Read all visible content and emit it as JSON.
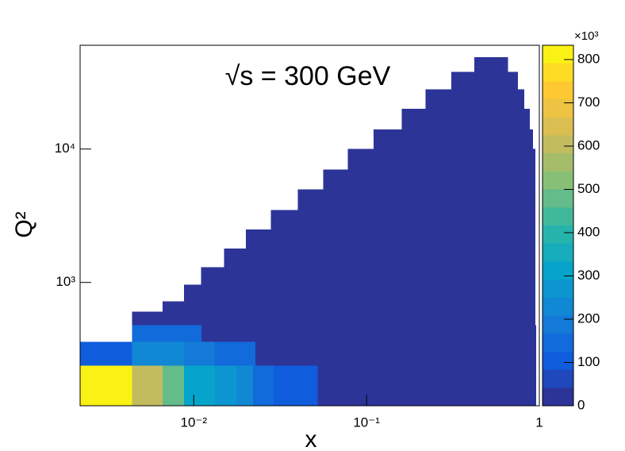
{
  "chart_data": {
    "type": "heatmap",
    "title": "√s = 300 GeV",
    "x_label": "x",
    "y_label": "Q²",
    "z_multiplier": "×10³",
    "xlog": true,
    "ylog": true,
    "xlim": [
      0.0022,
      1
    ],
    "ylim": [
      119,
      60000
    ],
    "zlim": [
      0,
      833000
    ],
    "xticks": [
      {
        "value": 0.01,
        "label": "10⁻²"
      },
      {
        "value": 0.1,
        "label": "10⁻¹"
      },
      1
    ],
    "yticks": [
      {
        "value": 1000,
        "label": "10³"
      },
      {
        "value": 10000,
        "label": "10⁴"
      }
    ],
    "zticks": [
      {
        "value": 0,
        "label": "0"
      },
      {
        "value": 100000,
        "label": "100"
      },
      {
        "value": 200000,
        "label": "200"
      },
      {
        "value": 300000,
        "label": "300"
      },
      {
        "value": 400000,
        "label": "400"
      },
      {
        "value": 500000,
        "label": "500"
      },
      {
        "value": 600000,
        "label": "600"
      },
      {
        "value": 700000,
        "label": "700"
      },
      {
        "value": 800000,
        "label": "800"
      }
    ],
    "contours": 20,
    "palette": [
      "#352a87",
      "#0f5cdd",
      "#1481d6",
      "#06a4ca",
      "#2eb7a4",
      "#87bf77",
      "#d1bb59",
      "#fec832",
      "#f9fb0e"
    ],
    "cells": [
      {
        "x": [
          0.0022,
          0.0044
        ],
        "y": [
          119,
          237
        ],
        "value": 820000
      },
      {
        "x": [
          0.0044,
          0.0066
        ],
        "y": [
          119,
          237
        ],
        "value": 620000
      },
      {
        "x": [
          0.0066,
          0.0088
        ],
        "y": [
          119,
          237
        ],
        "value": 470000
      },
      {
        "x": [
          0.0088,
          0.011
        ],
        "y": [
          119,
          237
        ],
        "value": 330000
      },
      {
        "x": [
          0.011,
          0.0132
        ],
        "y": [
          119,
          237
        ],
        "value": 300000
      },
      {
        "x": [
          0.0132,
          0.0176
        ],
        "y": [
          119,
          237
        ],
        "value": 270000
      },
      {
        "x": [
          0.0176,
          0.022
        ],
        "y": [
          119,
          237
        ],
        "value": 230000
      },
      {
        "x": [
          0.022,
          0.029
        ],
        "y": [
          119,
          237
        ],
        "value": 160000
      },
      {
        "x": [
          0.029,
          0.052
        ],
        "y": [
          119,
          237
        ],
        "value": 120000
      },
      {
        "x": [
          0.052,
          0.96
        ],
        "y": [
          119,
          237
        ],
        "value": 20000
      },
      {
        "x": [
          0.0022,
          0.0044
        ],
        "y": [
          237,
          358
        ],
        "value": 110000
      },
      {
        "x": [
          0.0044,
          0.0066
        ],
        "y": [
          237,
          358
        ],
        "value": 240000
      },
      {
        "x": [
          0.0066,
          0.0088
        ],
        "y": [
          237,
          358
        ],
        "value": 210000
      },
      {
        "x": [
          0.0088,
          0.0132
        ],
        "y": [
          237,
          358
        ],
        "value": 190000
      },
      {
        "x": [
          0.0132,
          0.0228
        ],
        "y": [
          237,
          358
        ],
        "value": 150000
      },
      {
        "x": [
          0.0228,
          0.96
        ],
        "y": [
          237,
          358
        ],
        "value": 30000
      },
      {
        "x": [
          0.0044,
          0.0111
        ],
        "y": [
          358,
          477
        ],
        "value": 130000
      },
      {
        "x": [
          0.0111,
          0.96
        ],
        "y": [
          358,
          477
        ],
        "value": 25000
      },
      {
        "x": [
          0.0044,
          0.95
        ],
        "y": [
          477,
          603
        ],
        "value": 20000
      },
      {
        "x": [
          0.0066,
          0.95
        ],
        "y": [
          603,
          720
        ],
        "value": 20000
      },
      {
        "x": [
          0.0088,
          0.95
        ],
        "y": [
          720,
          960
        ],
        "value": 20000
      },
      {
        "x": [
          0.011,
          0.95
        ],
        "y": [
          960,
          1300
        ],
        "value": 18000
      },
      {
        "x": [
          0.015,
          0.95
        ],
        "y": [
          1300,
          1800
        ],
        "value": 16000
      },
      {
        "x": [
          0.02,
          0.95
        ],
        "y": [
          1800,
          2500
        ],
        "value": 15000
      },
      {
        "x": [
          0.028,
          0.95
        ],
        "y": [
          2500,
          3500
        ],
        "value": 14000
      },
      {
        "x": [
          0.04,
          0.95
        ],
        "y": [
          3500,
          5000
        ],
        "value": 12000
      },
      {
        "x": [
          0.056,
          0.95
        ],
        "y": [
          5000,
          7000
        ],
        "value": 11000
      },
      {
        "x": [
          0.078,
          0.95
        ],
        "y": [
          7000,
          10000
        ],
        "value": 10000
      },
      {
        "x": [
          0.11,
          0.92
        ],
        "y": [
          10000,
          14000
        ],
        "value": 9000
      },
      {
        "x": [
          0.16,
          0.88
        ],
        "y": [
          14000,
          20000
        ],
        "value": 8000
      },
      {
        "x": [
          0.22,
          0.82
        ],
        "y": [
          20000,
          28000
        ],
        "value": 7000
      },
      {
        "x": [
          0.31,
          0.75
        ],
        "y": [
          28000,
          38000
        ],
        "value": 6000
      },
      {
        "x": [
          0.42,
          0.66
        ],
        "y": [
          38000,
          49000
        ],
        "value": 5000
      }
    ]
  }
}
